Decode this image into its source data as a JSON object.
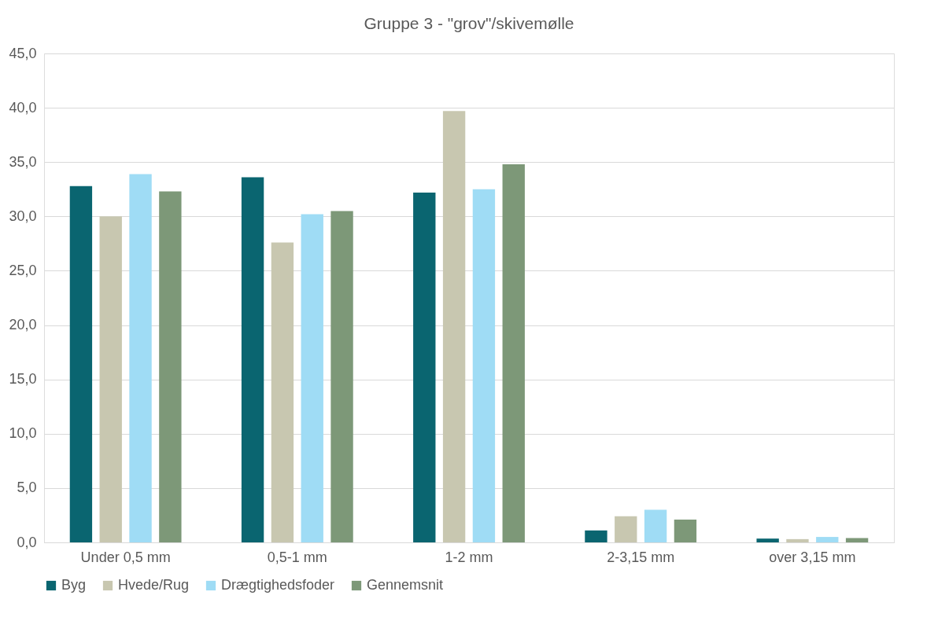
{
  "chart_data": {
    "type": "bar",
    "title": "Gruppe 3 - \"grov\"/skivemølle",
    "categories": [
      "Under 0,5 mm",
      "0,5-1 mm",
      "1-2 mm",
      "2-3,15 mm",
      "over 3,15 mm"
    ],
    "series": [
      {
        "name": "Byg",
        "color": "#0a6570",
        "values": [
          32.8,
          33.6,
          32.2,
          1.1,
          0.35
        ]
      },
      {
        "name": "Hvede/Rug",
        "color": "#c8c7b0",
        "values": [
          30.0,
          27.6,
          39.7,
          2.4,
          0.3
        ]
      },
      {
        "name": "Drægtighedsfoder",
        "color": "#9fdcf5",
        "values": [
          33.9,
          30.2,
          32.5,
          3.0,
          0.5
        ]
      },
      {
        "name": "Gennemsnit",
        "color": "#7d9878",
        "values": [
          32.3,
          30.5,
          34.8,
          2.1,
          0.4
        ]
      }
    ],
    "ylim": [
      0,
      45
    ],
    "yticks": [
      {
        "value": 0,
        "label": "0,0"
      },
      {
        "value": 5,
        "label": "5,0"
      },
      {
        "value": 10,
        "label": "10,0"
      },
      {
        "value": 15,
        "label": "15,0"
      },
      {
        "value": 20,
        "label": "20,0"
      },
      {
        "value": 25,
        "label": "25,0"
      },
      {
        "value": 30,
        "label": "30,0"
      },
      {
        "value": 35,
        "label": "35,0"
      },
      {
        "value": 40,
        "label": "40,0"
      },
      {
        "value": 45,
        "label": "45,0"
      }
    ],
    "grid": "y",
    "legend": "bottom"
  }
}
